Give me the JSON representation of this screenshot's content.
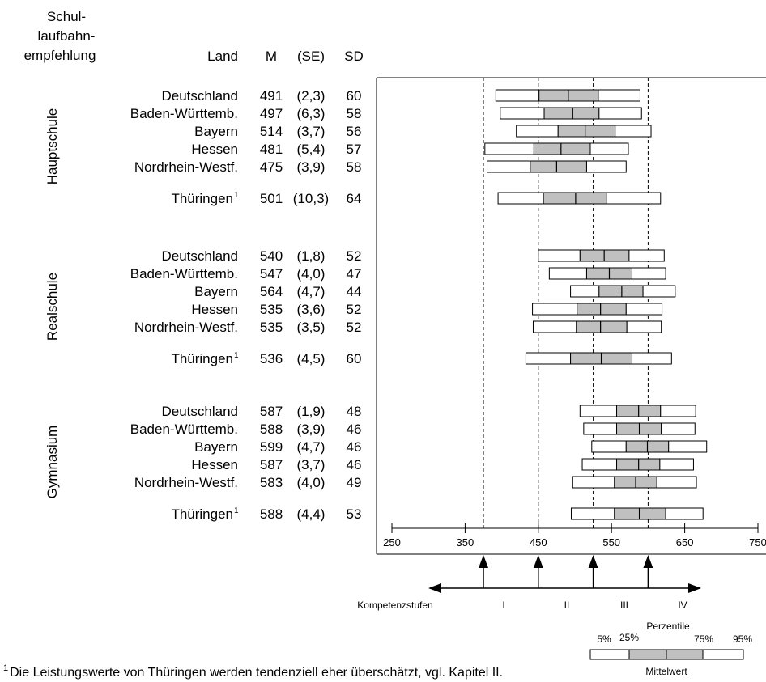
{
  "chart_data": {
    "type": "percentile-bands",
    "header": {
      "group_label_lines": [
        "Schul-",
        "laufbahn-",
        "empfehlung"
      ],
      "land": "Land",
      "m": "M",
      "se": "(SE)",
      "sd": "SD"
    },
    "x_ticks": [
      250,
      350,
      450,
      550,
      650,
      750
    ],
    "xlim": [
      250,
      750
    ],
    "levels": {
      "title": "Kompetenzstufen",
      "names": [
        "I",
        "II",
        "III",
        "IV"
      ],
      "cutoffs": [
        375,
        450,
        525,
        600
      ]
    },
    "groups": [
      {
        "name": "Hauptschule",
        "rows": [
          {
            "land": "Deutschland",
            "m": "491",
            "se": "(2,3)",
            "sd": "60",
            "p5": 392,
            "p25": 451,
            "mean": 491,
            "p75": 532,
            "p95": 589
          },
          {
            "land": "Baden-Württemb.",
            "m": "497",
            "se": "(6,3)",
            "sd": "58",
            "p5": 398,
            "p25": 458,
            "mean": 497,
            "p75": 533,
            "p95": 591
          },
          {
            "land": "Bayern",
            "m": "514",
            "se": "(3,7)",
            "sd": "56",
            "p5": 420,
            "p25": 477,
            "mean": 514,
            "p75": 555,
            "p95": 604
          },
          {
            "land": "Hessen",
            "m": "481",
            "se": "(5,4)",
            "sd": "57",
            "p5": 377,
            "p25": 444,
            "mean": 481,
            "p75": 521,
            "p95": 573
          },
          {
            "land": "Nordrhein-Westf.",
            "m": "475",
            "se": "(3,9)",
            "sd": "58",
            "p5": 380,
            "p25": 439,
            "mean": 475,
            "p75": 516,
            "p95": 570
          },
          {
            "land": "Thüringen",
            "sup": "1",
            "m": "501",
            "se": "(10,3)",
            "sd": "64",
            "p5": 395,
            "p25": 457,
            "mean": 501,
            "p75": 543,
            "p95": 617
          }
        ]
      },
      {
        "name": "Realschule",
        "rows": [
          {
            "land": "Deutschland",
            "m": "540",
            "se": "(1,8)",
            "sd": "52",
            "p5": 450,
            "p25": 507,
            "mean": 540,
            "p75": 574,
            "p95": 622
          },
          {
            "land": "Baden-Württemb.",
            "m": "547",
            "se": "(4,0)",
            "sd": "47",
            "p5": 465,
            "p25": 516,
            "mean": 547,
            "p75": 578,
            "p95": 624
          },
          {
            "land": "Bayern",
            "m": "564",
            "se": "(4,7)",
            "sd": "44",
            "p5": 494,
            "p25": 533,
            "mean": 564,
            "p75": 593,
            "p95": 637
          },
          {
            "land": "Hessen",
            "m": "535",
            "se": "(3,6)",
            "sd": "52",
            "p5": 442,
            "p25": 503,
            "mean": 535,
            "p75": 570,
            "p95": 619
          },
          {
            "land": "Nordrhein-Westf.",
            "m": "535",
            "se": "(3,5)",
            "sd": "52",
            "p5": 443,
            "p25": 502,
            "mean": 535,
            "p75": 571,
            "p95": 618
          },
          {
            "land": "Thüringen",
            "sup": "1",
            "m": "536",
            "se": "(4,5)",
            "sd": "60",
            "p5": 433,
            "p25": 494,
            "mean": 536,
            "p75": 578,
            "p95": 632
          }
        ]
      },
      {
        "name": "Gymnasium",
        "rows": [
          {
            "land": "Deutschland",
            "m": "587",
            "se": "(1,9)",
            "sd": "48",
            "p5": 507,
            "p25": 557,
            "mean": 587,
            "p75": 617,
            "p95": 665
          },
          {
            "land": "Baden-Württemb.",
            "m": "588",
            "se": "(3,9)",
            "sd": "46",
            "p5": 512,
            "p25": 557,
            "mean": 588,
            "p75": 618,
            "p95": 664
          },
          {
            "land": "Bayern",
            "m": "599",
            "se": "(4,7)",
            "sd": "46",
            "p5": 523,
            "p25": 570,
            "mean": 599,
            "p75": 628,
            "p95": 680
          },
          {
            "land": "Hessen",
            "m": "587",
            "se": "(3,7)",
            "sd": "46",
            "p5": 510,
            "p25": 557,
            "mean": 587,
            "p75": 616,
            "p95": 662
          },
          {
            "land": "Nordrhein-Westf.",
            "m": "583",
            "se": "(4,0)",
            "sd": "49",
            "p5": 497,
            "p25": 554,
            "mean": 583,
            "p75": 612,
            "p95": 666
          },
          {
            "land": "Thüringen",
            "sup": "1",
            "m": "588",
            "se": "(4,4)",
            "sd": "53",
            "p5": 495,
            "p25": 554,
            "mean": 588,
            "p75": 624,
            "p95": 675
          }
        ]
      }
    ],
    "legend": {
      "title": "Perzentile",
      "p5": "5%",
      "p25": "25%",
      "p75": "75%",
      "p95": "95%",
      "mean": "Mittelwert"
    },
    "footnote": {
      "marker": "1",
      "text": "Die Leistungswerte von Thüringen werden tendenziell eher überschätzt, vgl. Kapitel II."
    },
    "colors": {
      "band_inner": "#c0c0c0",
      "band_outer": "#ffffff",
      "stroke": "#000000"
    }
  }
}
